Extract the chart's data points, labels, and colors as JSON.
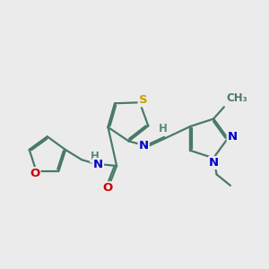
{
  "bg_color": "#ebebeb",
  "bond_color": "#4a7a68",
  "bond_lw": 1.6,
  "atom_colors": {
    "S": "#c8a000",
    "N": "#0000cc",
    "O": "#cc0000",
    "H": "#5a8a78",
    "C": "#4a7a68"
  },
  "figsize": [
    3.0,
    3.0
  ],
  "dpi": 100
}
